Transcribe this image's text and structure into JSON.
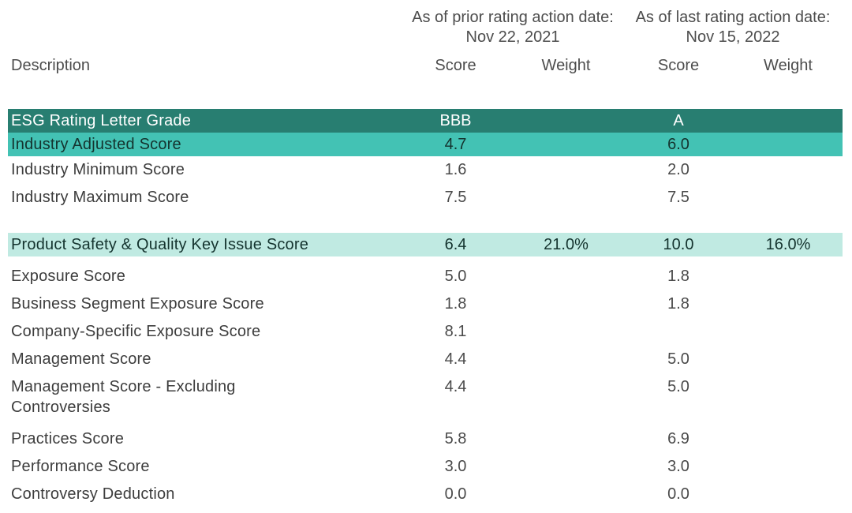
{
  "title": "ESG Rating Scores and Weights Table",
  "colors": {
    "dark_teal_row": "#287e71",
    "light_teal_row": "#43c2b4",
    "mint_row": "#c0eae2",
    "header_text": "#4d4d4d",
    "label_text": "#3d3d3d",
    "value_text": "#4a4a4a",
    "dark_row_text": "#ffffff"
  },
  "header": {
    "description_label": "Description",
    "groups": [
      {
        "line1": "As of prior rating action date:",
        "line2": "Nov 22, 2021"
      },
      {
        "line1": "As of last rating action date:",
        "line2": "Nov 15, 2022"
      }
    ],
    "columns": [
      "Score",
      "Weight",
      "Score",
      "Weight"
    ]
  },
  "sections": [
    {
      "rows": [
        {
          "label": "ESG Rating Letter Grade",
          "score1": "BBB",
          "weight1": "",
          "score2": "A",
          "weight2": "",
          "highlight": "dark-teal"
        },
        {
          "label": "Industry Adjusted Score",
          "score1": "4.7",
          "weight1": "",
          "score2": "6.0",
          "weight2": "",
          "highlight": "light-teal"
        },
        {
          "label": "Industry Minimum Score",
          "score1": "1.6",
          "weight1": "",
          "score2": "2.0",
          "weight2": "",
          "highlight": "none"
        },
        {
          "label": "Industry Maximum Score",
          "score1": "7.5",
          "weight1": "",
          "score2": "7.5",
          "weight2": "",
          "highlight": "none"
        }
      ]
    },
    {
      "rows": [
        {
          "label": "Product Safety & Quality Key Issue Score",
          "score1": "6.4",
          "weight1": "21.0%",
          "score2": "10.0",
          "weight2": "16.0%",
          "highlight": "mint"
        },
        {
          "label": "Exposure Score",
          "score1": "5.0",
          "weight1": "",
          "score2": "1.8",
          "weight2": "",
          "highlight": "none"
        },
        {
          "label": "Business Segment Exposure Score",
          "score1": "1.8",
          "weight1": "",
          "score2": "1.8",
          "weight2": "",
          "highlight": "none"
        },
        {
          "label": "Company-Specific Exposure Score",
          "score1": "8.1",
          "weight1": "",
          "score2": "",
          "weight2": "",
          "highlight": "none"
        },
        {
          "label": "Management Score",
          "score1": "4.4",
          "weight1": "",
          "score2": "5.0",
          "weight2": "",
          "highlight": "none"
        },
        {
          "label": "Management Score - Excluding",
          "label2": "Controversies",
          "score1": "4.4",
          "weight1": "",
          "score2": "5.0",
          "weight2": "",
          "highlight": "none"
        },
        {
          "label": "Practices Score",
          "score1": "5.8",
          "weight1": "",
          "score2": "6.9",
          "weight2": "",
          "highlight": "none"
        },
        {
          "label": "Performance Score",
          "score1": "3.0",
          "weight1": "",
          "score2": "3.0",
          "weight2": "",
          "highlight": "none"
        },
        {
          "label": "Controversy Deduction",
          "score1": "0.0",
          "weight1": "",
          "score2": "0.0",
          "weight2": "",
          "highlight": "none"
        }
      ]
    }
  ]
}
